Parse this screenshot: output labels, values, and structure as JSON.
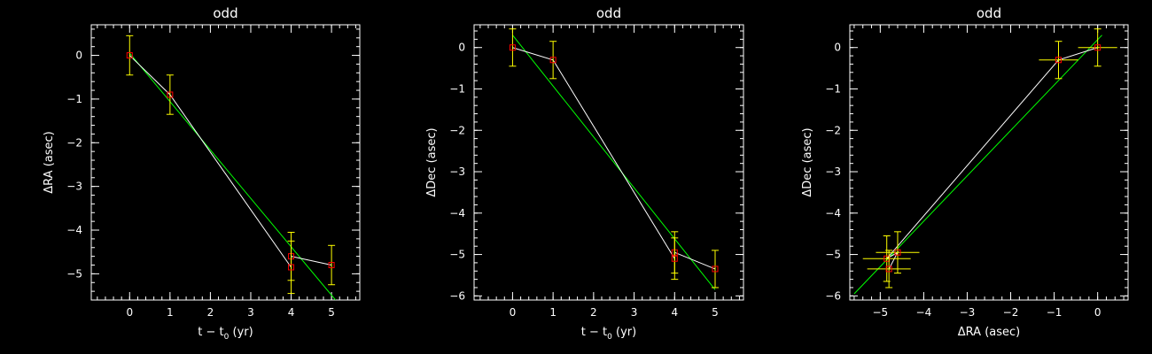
{
  "colors": {
    "background": "#000000",
    "axes": "#ffffff",
    "points": "#ff0000",
    "errorbars": "#ffff00",
    "data_line": "#ffffff",
    "fit_line": "#00ff00"
  },
  "chart_data": [
    {
      "type": "scatter",
      "title": "odd",
      "xlabel": "t − t",
      "xlabel_sub": "0",
      "xlabel_unit": " (yr)",
      "ylabel": "ΔRA (asec)",
      "xlim": [
        -0.95,
        5.7
      ],
      "ylim": [
        -5.6,
        0.7
      ],
      "xticks": [
        0,
        1,
        2,
        3,
        4,
        5
      ],
      "yticks": [
        0,
        -1,
        -2,
        -3,
        -4,
        -5
      ],
      "xtick_labels": [
        "0",
        "1",
        "2",
        "3",
        "4",
        "5"
      ],
      "ytick_labels": [
        "0",
        "−1",
        "−2",
        "−3",
        "−4",
        "−5"
      ],
      "x_minor": 0.2,
      "y_minor": 0.2,
      "points": [
        {
          "x": 0,
          "y": 0,
          "yerr": 0.45
        },
        {
          "x": 1,
          "y": -0.9,
          "yerr": 0.45
        },
        {
          "x": 4,
          "y": -4.6,
          "yerr": 0.55
        },
        {
          "x": 4,
          "y": -4.85,
          "yerr": 0.6
        },
        {
          "x": 5,
          "y": -4.8,
          "yerr": 0.45
        }
      ],
      "data_line": [
        [
          0,
          0
        ],
        [
          1,
          -0.9
        ],
        [
          4,
          -4.85
        ],
        [
          4,
          -4.6
        ],
        [
          5,
          -4.8
        ]
      ],
      "fit_line": [
        [
          0,
          0.05
        ],
        [
          5.1,
          -5.6
        ]
      ]
    },
    {
      "type": "scatter",
      "title": "odd",
      "xlabel": "t − t",
      "xlabel_sub": "0",
      "xlabel_unit": " (yr)",
      "ylabel": "ΔDec (asec)",
      "xlim": [
        -0.95,
        5.7
      ],
      "ylim": [
        -6.1,
        0.55
      ],
      "xticks": [
        0,
        1,
        2,
        3,
        4,
        5
      ],
      "yticks": [
        0,
        -1,
        -2,
        -3,
        -4,
        -5,
        -6
      ],
      "xtick_labels": [
        "0",
        "1",
        "2",
        "3",
        "4",
        "5"
      ],
      "ytick_labels": [
        "0",
        "−1",
        "−2",
        "−3",
        "−4",
        "−5",
        "−6"
      ],
      "x_minor": 0.2,
      "y_minor": 0.2,
      "points": [
        {
          "x": 0,
          "y": 0,
          "yerr": 0.45
        },
        {
          "x": 1,
          "y": -0.3,
          "yerr": 0.45
        },
        {
          "x": 4,
          "y": -4.95,
          "yerr": 0.5
        },
        {
          "x": 4,
          "y": -5.1,
          "yerr": 0.5
        },
        {
          "x": 5,
          "y": -5.35,
          "yerr": 0.45
        }
      ],
      "data_line": [
        [
          0,
          0
        ],
        [
          1,
          -0.3
        ],
        [
          4,
          -5.1
        ],
        [
          4,
          -4.95
        ],
        [
          5,
          -5.35
        ]
      ],
      "fit_line": [
        [
          0,
          0.3
        ],
        [
          5,
          -5.85
        ]
      ]
    },
    {
      "type": "scatter",
      "title": "odd",
      "xlabel": "ΔRA (asec)",
      "xlabel_sub": "",
      "xlabel_unit": "",
      "ylabel": "ΔDec (asec)",
      "xlim": [
        -5.7,
        0.7
      ],
      "ylim": [
        -6.1,
        0.55
      ],
      "xticks": [
        -5,
        -4,
        -3,
        -2,
        -1,
        0
      ],
      "yticks": [
        0,
        -1,
        -2,
        -3,
        -4,
        -5,
        -6
      ],
      "xtick_labels": [
        "−5",
        "−4",
        "−3",
        "−2",
        "−1",
        "0"
      ],
      "ytick_labels": [
        "0",
        "−1",
        "−2",
        "−3",
        "−4",
        "−5",
        "−6"
      ],
      "x_minor": 0.2,
      "y_minor": 0.2,
      "points": [
        {
          "x": 0,
          "y": 0,
          "xerr": 0.45,
          "yerr": 0.45
        },
        {
          "x": -0.9,
          "y": -0.3,
          "xerr": 0.45,
          "yerr": 0.45
        },
        {
          "x": -4.6,
          "y": -4.95,
          "xerr": 0.5,
          "yerr": 0.5
        },
        {
          "x": -4.85,
          "y": -5.1,
          "xerr": 0.55,
          "yerr": 0.55
        },
        {
          "x": -4.8,
          "y": -5.35,
          "xerr": 0.5,
          "yerr": 0.45
        }
      ],
      "data_line": [
        [
          0,
          0
        ],
        [
          -0.9,
          -0.3
        ],
        [
          -4.85,
          -5.1
        ],
        [
          -4.6,
          -4.95
        ],
        [
          -4.8,
          -5.35
        ]
      ],
      "fit_line": [
        [
          0.1,
          0.3
        ],
        [
          -5.6,
          -5.95
        ]
      ]
    }
  ]
}
